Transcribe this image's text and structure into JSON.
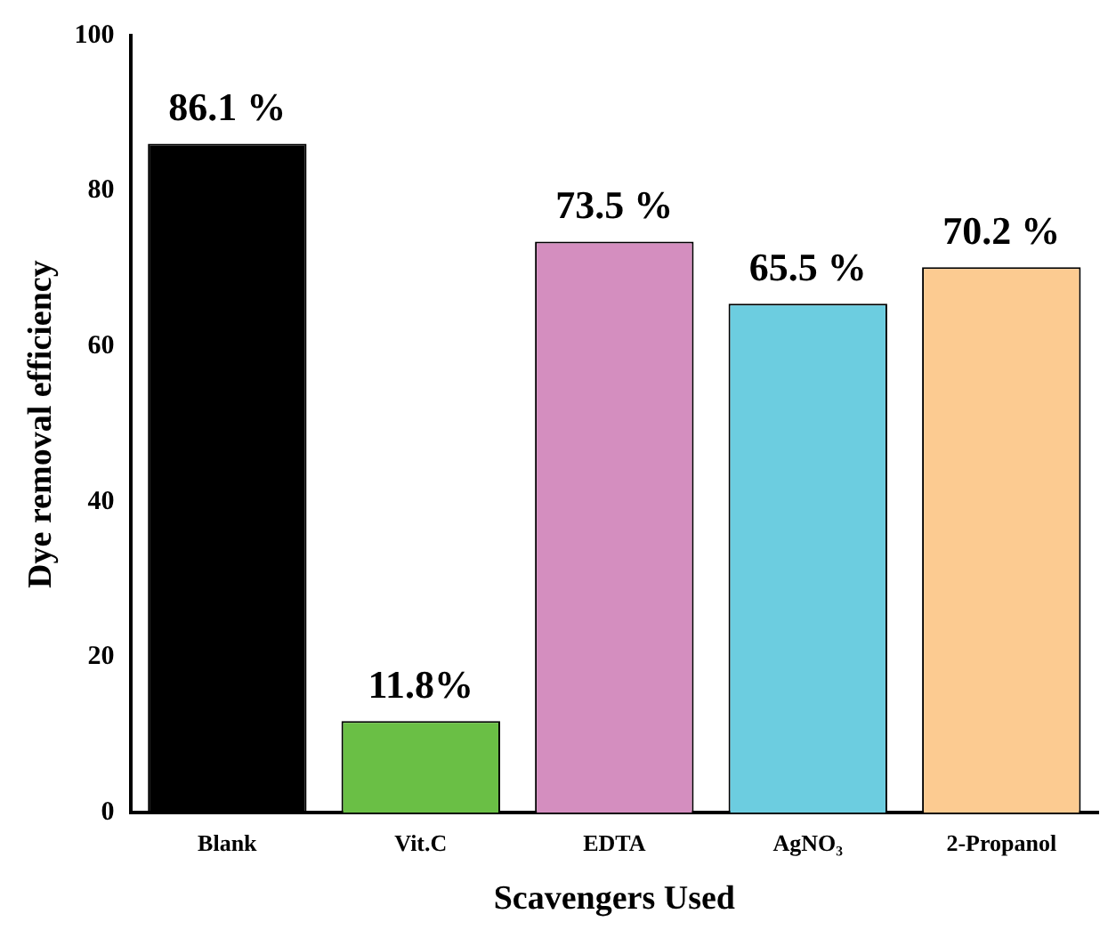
{
  "chart_data": {
    "type": "bar",
    "xlabel": "Scavengers Used",
    "ylabel": "Dye removal efficiency",
    "categories": [
      "Blank",
      "Vit.C",
      "EDTA",
      "AgNO₃",
      "2-Propanol"
    ],
    "values": [
      86.1,
      11.8,
      73.5,
      65.5,
      70.2
    ],
    "colors": [
      "#000000",
      "#6abf45",
      "#d48ebf",
      "#6ccde0",
      "#fccb91"
    ],
    "value_labels": [
      "86.1 %",
      "11.8%",
      "73.5 %",
      "65.5 %",
      "70.2 %"
    ],
    "ylim": [
      0,
      100
    ],
    "yticks": [
      0,
      20,
      40,
      60,
      80,
      100
    ],
    "grid": false,
    "legend": false
  }
}
